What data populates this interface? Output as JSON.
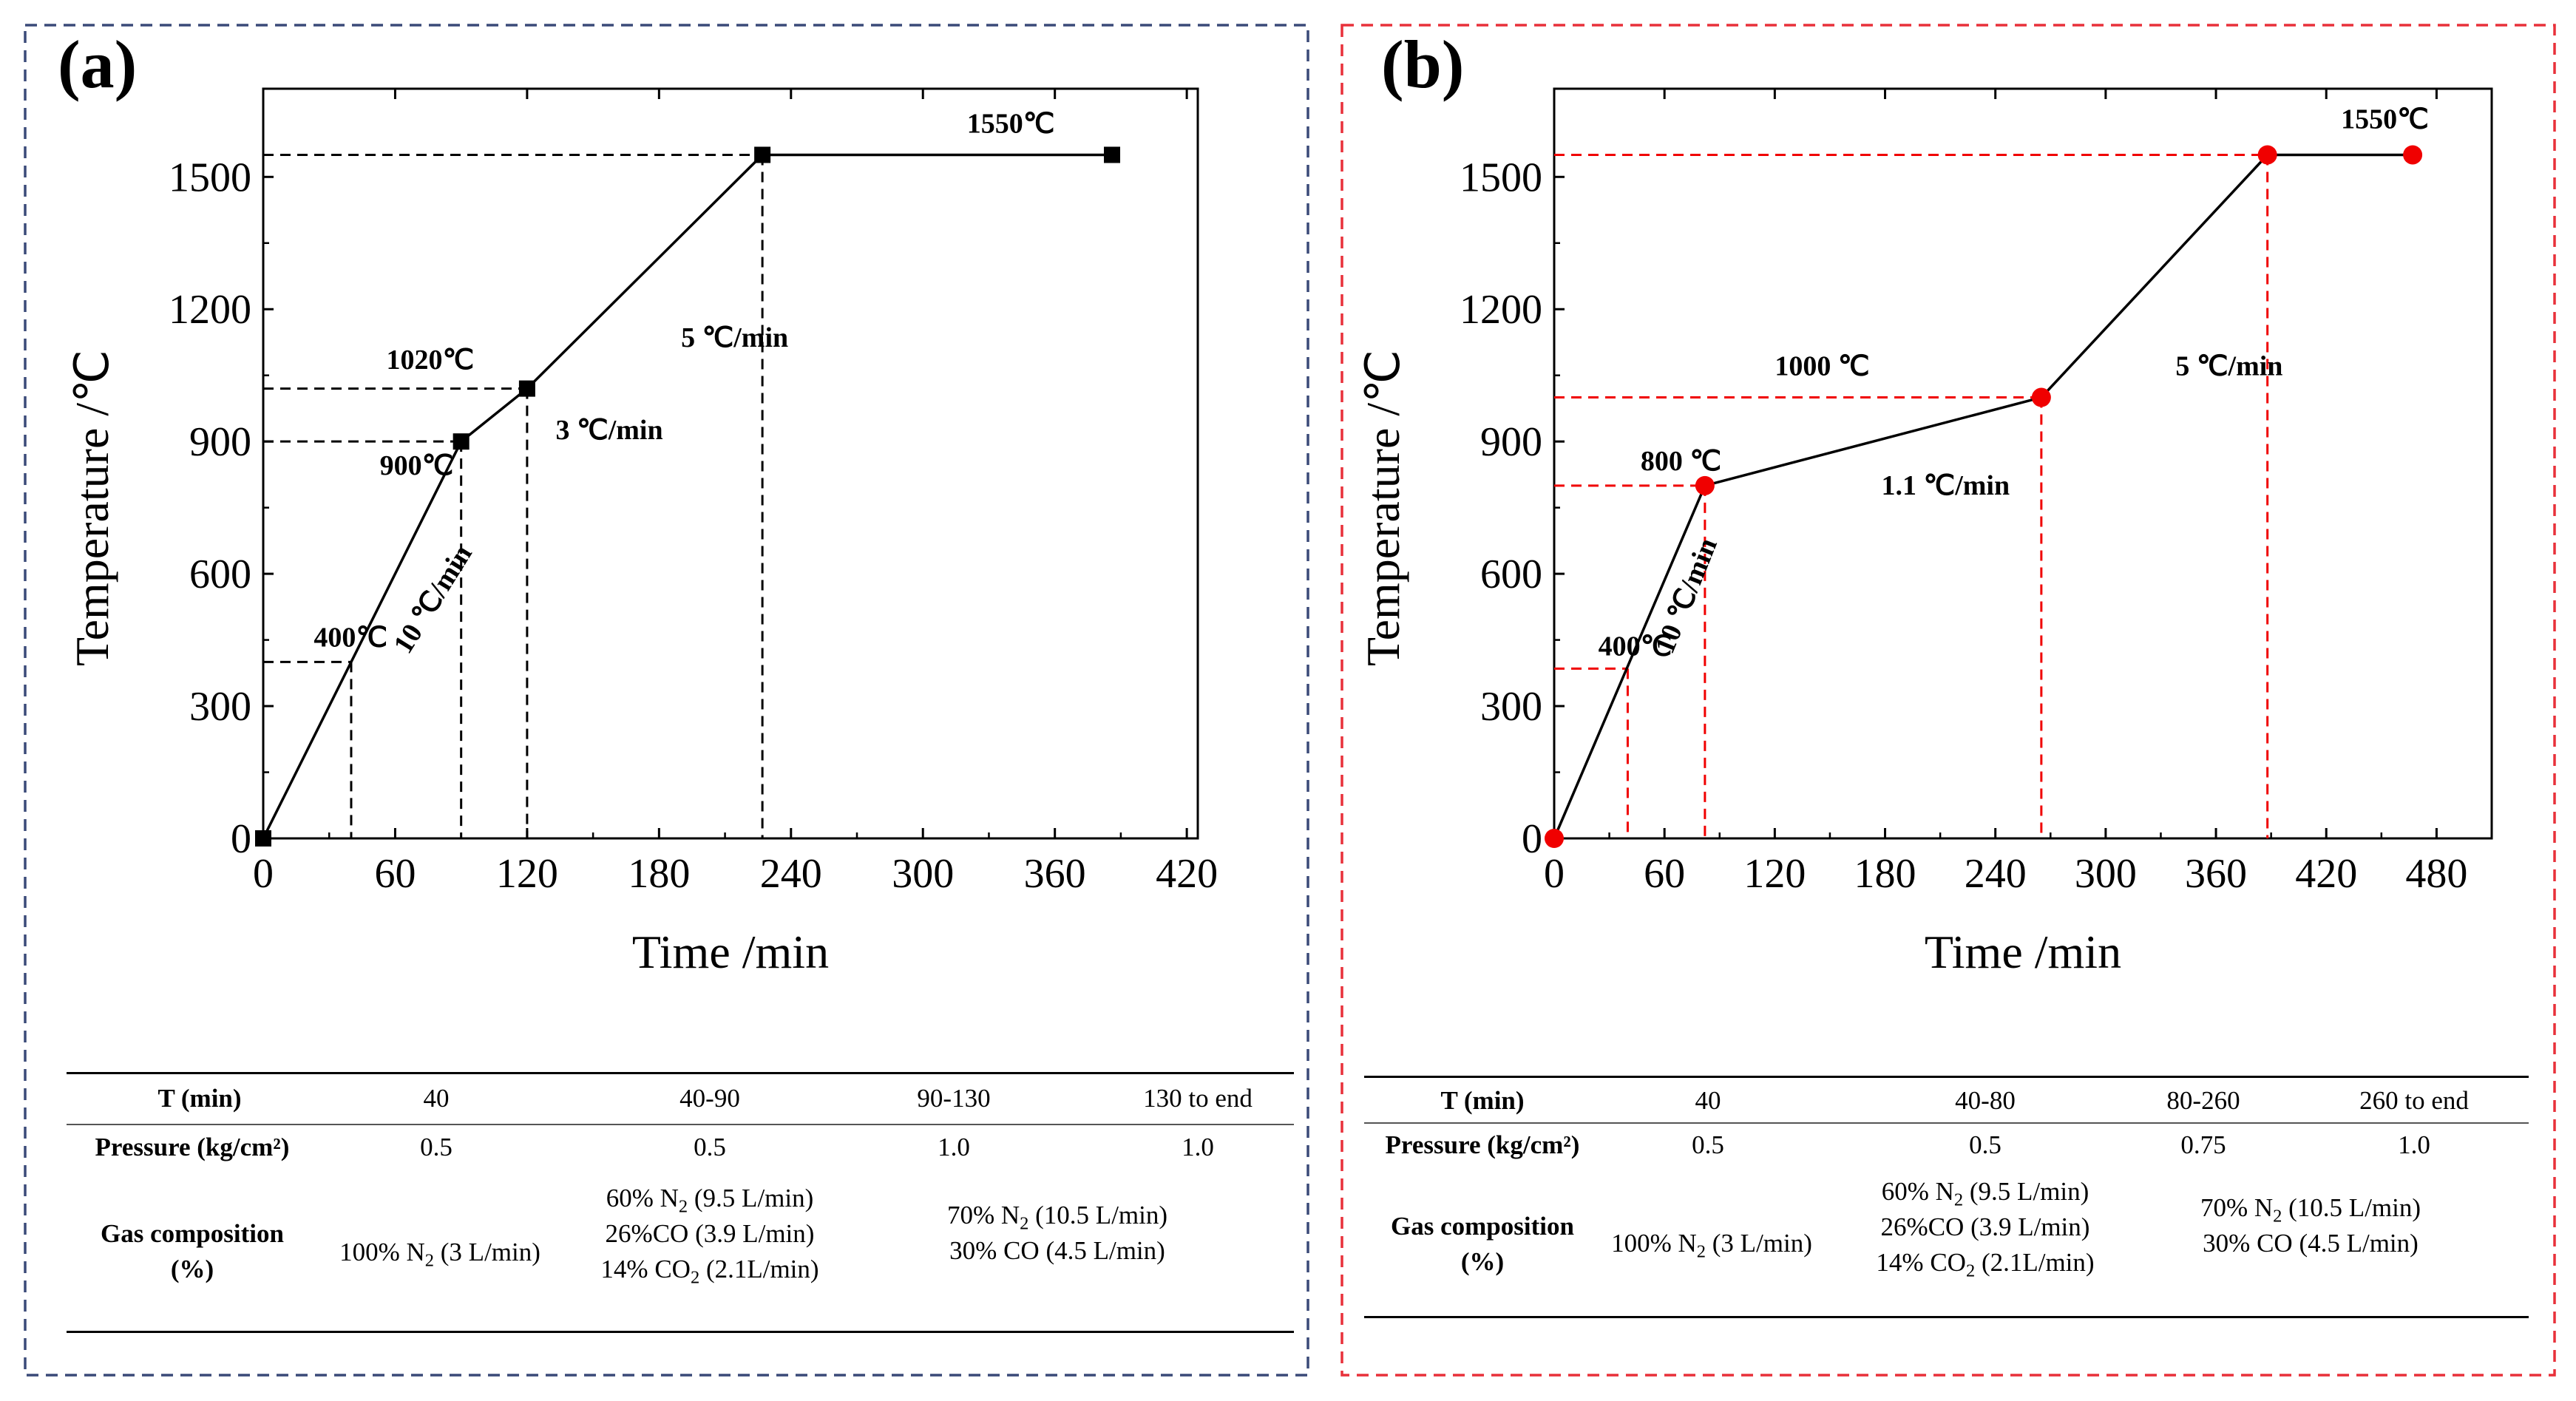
{
  "colors": {
    "panel_a_border": "#3a4a78",
    "panel_b_border": "#e8303a",
    "series_a": "#000000",
    "series_b": "#f00000",
    "guide_a": "#000000",
    "guide_b": "#f00000"
  },
  "chart_data": [
    {
      "id": "a",
      "type": "line",
      "label": "(a)",
      "xlabel": "Time /min",
      "ylabel": "Temperature /℃",
      "xlim": [
        0,
        425
      ],
      "ylim": [
        0,
        1700
      ],
      "xticks": [
        0,
        60,
        120,
        180,
        240,
        300,
        360,
        420
      ],
      "yticks": [
        0,
        300,
        600,
        900,
        1200,
        1500
      ],
      "marker": "square",
      "points": [
        {
          "x": 0,
          "y": 0
        },
        {
          "x": 90,
          "y": 900
        },
        {
          "x": 120,
          "y": 1020
        },
        {
          "x": 227,
          "y": 1550
        },
        {
          "x": 386,
          "y": 1550
        }
      ],
      "guides": [
        {
          "x": 40,
          "y": 400
        },
        {
          "x": 90,
          "y": 900
        },
        {
          "x": 120,
          "y": 1020
        },
        {
          "x": 227,
          "y": 1550
        }
      ],
      "annotations": [
        {
          "text": "1550℃",
          "x": 320,
          "y": 1600,
          "rotate": 0
        },
        {
          "text": "1020℃",
          "x": 56,
          "y": 1065,
          "rotate": 0
        },
        {
          "text": "900℃",
          "x": 53,
          "y": 825,
          "rotate": 0
        },
        {
          "text": "400℃",
          "x": 23,
          "y": 435,
          "rotate": 0
        },
        {
          "text": "3 ℃/min",
          "x": 133,
          "y": 905,
          "rotate": 0
        },
        {
          "text": "5 ℃/min",
          "x": 190,
          "y": 1115,
          "rotate": 0
        },
        {
          "text": "10 ℃/min",
          "x": 66,
          "y": 415,
          "rotate": -58
        }
      ]
    },
    {
      "id": "b",
      "type": "line",
      "label": "(b)",
      "xlabel": "Time /min",
      "ylabel": "Temperature /℃",
      "xlim": [
        0,
        510
      ],
      "ylim": [
        0,
        1700
      ],
      "xticks": [
        0,
        60,
        120,
        180,
        240,
        300,
        360,
        420,
        480
      ],
      "yticks": [
        0,
        300,
        600,
        900,
        1200,
        1500
      ],
      "marker": "circle",
      "points": [
        {
          "x": 0,
          "y": 0
        },
        {
          "x": 82,
          "y": 800
        },
        {
          "x": 265,
          "y": 1000
        },
        {
          "x": 388,
          "y": 1550
        },
        {
          "x": 467,
          "y": 1550
        }
      ],
      "guides": [
        {
          "x": 40,
          "y": 385
        },
        {
          "x": 82,
          "y": 800
        },
        {
          "x": 265,
          "y": 1000
        },
        {
          "x": 388,
          "y": 1550
        }
      ],
      "annotations": [
        {
          "text": "1550℃",
          "x": 428,
          "y": 1610,
          "rotate": 0
        },
        {
          "text": "1000 ℃",
          "x": 120,
          "y": 1050,
          "rotate": 0
        },
        {
          "text": "800 ℃",
          "x": 47,
          "y": 835,
          "rotate": 0
        },
        {
          "text": "400℃",
          "x": 24,
          "y": 415,
          "rotate": 0
        },
        {
          "text": "1.1 ℃/min",
          "x": 178,
          "y": 780,
          "rotate": 0
        },
        {
          "text": "5 ℃/min",
          "x": 338,
          "y": 1050,
          "rotate": 0
        },
        {
          "text": "10 ℃/min",
          "x": 64,
          "y": 415,
          "rotate": -68
        }
      ]
    }
  ],
  "table_a": {
    "row1": {
      "label": "T (min)",
      "c1": "40",
      "c2": "40-90",
      "c3": "90-130",
      "c4": "130 to end"
    },
    "row2": {
      "label": "Pressure (kg/cm²)",
      "c1": "0.5",
      "c2": "0.5",
      "c3": "1.0",
      "c4": "1.0"
    },
    "row3": {
      "label1": "Gas composition",
      "label2": "(%)",
      "c1": {
        "a": "100% N",
        "sub": "2",
        "b": " (3 L/min)"
      },
      "c2": [
        {
          "a": "60% N",
          "sub": "2",
          "b": " (9.5 L/min)"
        },
        {
          "a": "26%CO (3.9 L/min)",
          "sub": "",
          "b": ""
        },
        {
          "a": "14% CO",
          "sub": "2",
          "b": " (2.1L/min)"
        }
      ],
      "c34": [
        {
          "a": "70% N",
          "sub": "2",
          "b": " (10.5 L/min)"
        },
        {
          "a": "30% CO (4.5 L/min)",
          "sub": "",
          "b": ""
        }
      ]
    }
  },
  "table_b": {
    "row1": {
      "label": "T (min)",
      "c1": "40",
      "c2": "40-80",
      "c3": "80-260",
      "c4": "260 to end"
    },
    "row2": {
      "label": "Pressure (kg/cm²)",
      "c1": "0.5",
      "c2": "0.5",
      "c3": "0.75",
      "c4": "1.0"
    },
    "row3": {
      "label1": "Gas composition",
      "label2": "(%)",
      "c1": {
        "a": "100% N",
        "sub": "2",
        "b": " (3 L/min)"
      },
      "c2": [
        {
          "a": "60% N",
          "sub": "2",
          "b": " (9.5 L/min)"
        },
        {
          "a": "26%CO (3.9 L/min)",
          "sub": "",
          "b": ""
        },
        {
          "a": "14% CO",
          "sub": "2",
          "b": " (2.1L/min)"
        }
      ],
      "c34": [
        {
          "a": "70% N",
          "sub": "2",
          "b": " (10.5 L/min)"
        },
        {
          "a": "30% CO (4.5 L/min)",
          "sub": "",
          "b": ""
        }
      ]
    }
  }
}
